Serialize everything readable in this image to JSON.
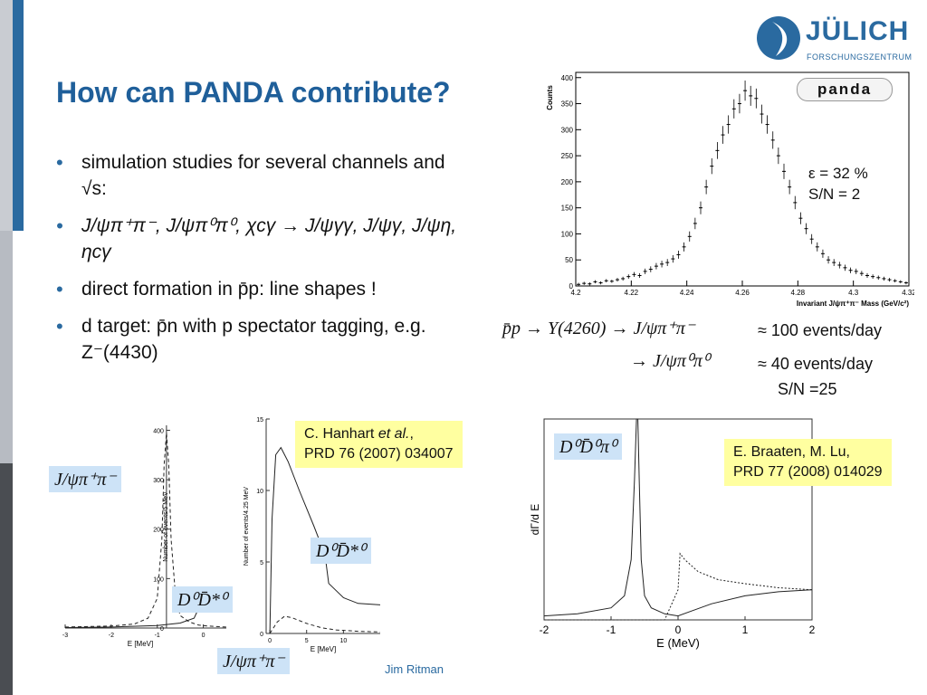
{
  "slide": {
    "title": "How can PANDA contribute?",
    "logo": {
      "name": "JÜLICH",
      "subtitle": "FORSCHUNGSZENTRUM"
    },
    "bullets": [
      "simulation studies for several channels and √s:",
      "J/ψπ⁺π⁻, J/ψπ⁰π⁰, χcγ → J/ψγγ, J/ψγ, J/ψη, ηcγ",
      "direct formation in p̄p: line shapes !",
      "d target: p̄n with p spectator tagging, e.g. Z⁻(4430)"
    ],
    "panda_logo": "panda",
    "efficiency": "ε = 32 %",
    "sn_top": "S/N = 2",
    "reaction_line1": "p̄p → Υ(4260) → J/ψπ⁺π⁻",
    "reaction_line2": "→ J/ψπ⁰π⁰",
    "rate1": "≈ 100 events/day",
    "rate2": "≈ 40 events/day",
    "rate2_sn": "S/N =25",
    "label_jpsipipi_left": "J/ψπ⁺π⁻",
    "label_dd_left": "D⁰D̄*⁰",
    "label_dd_mid": "D⁰D̄*⁰",
    "label_jpsipipi_bottom": "J/ψπ⁺π⁻",
    "label_ddpi": "D⁰D̄⁰π⁰",
    "ref_hanhart": {
      "line1_pre": "C. Hanhart ",
      "line1_it": "et al.",
      "line1_post": ",",
      "line2": "PRD 76 (2007) 034007"
    },
    "ref_braaten": {
      "line1": "E. Braaten, M. Lu,",
      "line2": "PRD 77 (2008) 014029"
    },
    "footer": "Jim Ritman"
  },
  "chart_data": [
    {
      "type": "scatter",
      "title": "",
      "xlabel": "Invariant J/ψπ⁺π⁻ Mass (GeV/c²)",
      "ylabel": "Counts",
      "xlim": [
        4.2,
        4.32
      ],
      "ylim": [
        0,
        410
      ],
      "xticks": [
        4.2,
        4.22,
        4.24,
        4.26,
        4.28,
        4.3,
        4.32
      ],
      "xtick_labels": [
        "4.2",
        "4.22",
        "4.24",
        "4.26",
        "4.28",
        "4.3",
        "4.32"
      ],
      "yticks": [
        0,
        50,
        100,
        150,
        200,
        250,
        300,
        350,
        400
      ],
      "x": [
        4.201,
        4.203,
        4.205,
        4.207,
        4.209,
        4.211,
        4.213,
        4.215,
        4.217,
        4.219,
        4.221,
        4.223,
        4.225,
        4.227,
        4.229,
        4.231,
        4.233,
        4.235,
        4.237,
        4.239,
        4.241,
        4.243,
        4.245,
        4.247,
        4.249,
        4.251,
        4.253,
        4.255,
        4.257,
        4.259,
        4.261,
        4.263,
        4.265,
        4.267,
        4.269,
        4.271,
        4.273,
        4.275,
        4.277,
        4.279,
        4.281,
        4.283,
        4.285,
        4.287,
        4.289,
        4.291,
        4.293,
        4.295,
        4.297,
        4.299,
        4.301,
        4.303,
        4.305,
        4.307,
        4.309,
        4.311,
        4.313,
        4.315,
        4.317,
        4.319
      ],
      "y": [
        3,
        5,
        4,
        8,
        6,
        10,
        9,
        12,
        14,
        18,
        22,
        20,
        28,
        32,
        38,
        42,
        45,
        52,
        60,
        75,
        95,
        120,
        150,
        190,
        230,
        260,
        290,
        310,
        340,
        350,
        375,
        365,
        360,
        330,
        310,
        280,
        250,
        220,
        190,
        160,
        130,
        110,
        90,
        75,
        62,
        50,
        45,
        40,
        35,
        30,
        28,
        24,
        20,
        18,
        16,
        14,
        12,
        10,
        8,
        6
      ]
    },
    {
      "type": "line",
      "title": "",
      "xlabel": "E [MeV]",
      "ylabel": "Number of events/5 MeV",
      "xlim": [
        -3,
        0.5
      ],
      "ylim": [
        0,
        410
      ],
      "xticks": [
        -3,
        -2,
        -1,
        0
      ],
      "yticks": [
        0,
        100,
        200,
        300,
        400
      ],
      "series": [
        {
          "x": [
            -3,
            -2,
            -1.5,
            -1.2,
            -1.0,
            -0.9,
            -0.85,
            -0.8,
            -0.75,
            -0.7,
            -0.6,
            -0.5,
            -0.3,
            -0.1,
            0.1,
            0.3,
            0.5
          ],
          "y": [
            2,
            4,
            8,
            20,
            60,
            180,
            330,
            395,
            330,
            180,
            60,
            25,
            12,
            6,
            4,
            3,
            2
          ]
        },
        {
          "x": [
            -3,
            -2,
            -1,
            -0.5,
            -0.2,
            0,
            0.1,
            0.3,
            0.5
          ],
          "y": [
            1,
            2,
            5,
            10,
            20,
            60,
            55,
            48,
            45
          ]
        }
      ]
    },
    {
      "type": "line",
      "title": "",
      "xlabel": "E [MeV]",
      "ylabel": "Number of events/4.25 MeV",
      "xlim": [
        -0.5,
        15
      ],
      "ylim": [
        0,
        15
      ],
      "xticks": [
        0,
        5,
        10
      ],
      "yticks": [
        0,
        5,
        10,
        15
      ],
      "series": [
        {
          "x": [
            0,
            0.3,
            0.8,
            1.5,
            2.5,
            4,
            6,
            7.5,
            8,
            10,
            12,
            15
          ],
          "y": [
            0,
            8,
            12.5,
            13,
            12,
            10,
            7.5,
            5.5,
            3.5,
            2.5,
            2.1,
            2.0
          ]
        },
        {
          "x": [
            0,
            1,
            2,
            3,
            5,
            7,
            9,
            12,
            15
          ],
          "y": [
            0,
            0.8,
            1.2,
            1.1,
            0.7,
            0.4,
            0.25,
            0.15,
            0.1
          ]
        }
      ]
    },
    {
      "type": "line",
      "title": "",
      "xlabel": "E (MeV)",
      "ylabel": "dΓ/d E",
      "xlim": [
        -2,
        2
      ],
      "ylim": [
        0,
        1
      ],
      "xticks": [
        -2,
        -1,
        0,
        1,
        2
      ],
      "xtick_labels": [
        "-2",
        "-1",
        "0",
        "1",
        "2"
      ],
      "series": [
        {
          "x": [
            -2,
            -1.5,
            -1.0,
            -0.8,
            -0.7,
            -0.65,
            -0.62,
            -0.6,
            -0.58,
            -0.55,
            -0.5,
            -0.4,
            -0.2,
            0,
            0.5,
            1,
            1.5,
            2
          ],
          "y": [
            0.02,
            0.03,
            0.06,
            0.12,
            0.3,
            0.7,
            1.0,
            1.0,
            0.7,
            0.3,
            0.12,
            0.06,
            0.03,
            0.02,
            0.08,
            0.12,
            0.14,
            0.15
          ]
        },
        {
          "x": [
            -2,
            -0.2,
            0,
            0.03,
            0.1,
            0.3,
            0.6,
            1.0,
            1.5,
            2
          ],
          "y": [
            0,
            0,
            0.15,
            0.33,
            0.3,
            0.24,
            0.2,
            0.18,
            0.16,
            0.15
          ]
        }
      ]
    }
  ]
}
